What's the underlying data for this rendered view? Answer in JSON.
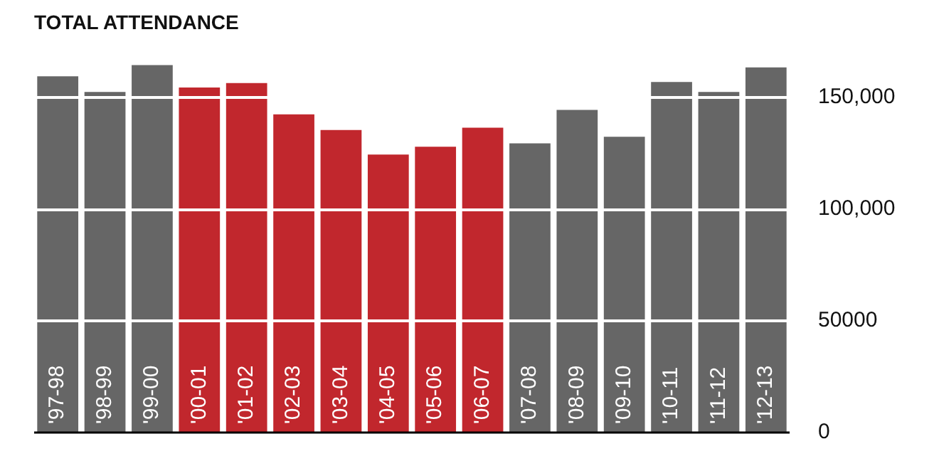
{
  "chart_data": {
    "type": "bar",
    "title": "TOTAL ATTENDANCE",
    "categories": [
      "'97-98",
      "'98-99",
      "'99-00",
      "'00-01",
      "'01-02",
      "'02-03",
      "'03-04",
      "'04-05",
      "'05-06",
      "'06-07",
      "'07-08",
      "'08-09",
      "'09-10",
      "'10-11",
      "'11-12",
      "'12-13"
    ],
    "values": [
      160000,
      153000,
      165000,
      155000,
      157000,
      143000,
      136000,
      125000,
      128500,
      137000,
      130000,
      145000,
      133000,
      157500,
      153000,
      164000
    ],
    "colors": [
      "#666666",
      "#666666",
      "#666666",
      "#c1272d",
      "#c1272d",
      "#c1272d",
      "#c1272d",
      "#c1272d",
      "#c1272d",
      "#c1272d",
      "#666666",
      "#666666",
      "#666666",
      "#666666",
      "#666666",
      "#666666"
    ],
    "ylim": [
      0,
      165000
    ],
    "yticks": [
      0,
      50000,
      {
        "value": 100000,
        "label": "100,000"
      },
      {
        "value": 150000,
        "label": "150,000"
      }
    ],
    "grid": "y",
    "legend": false
  }
}
